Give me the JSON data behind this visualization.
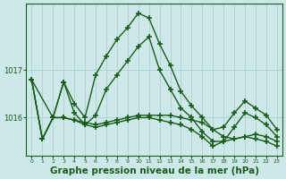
{
  "background_color": "#cce8e8",
  "plot_bg_color": "#cce8e8",
  "line_color": "#1a5c1a",
  "marker_style": "+",
  "marker_size": 5,
  "marker_lw": 1.2,
  "line_width": 1.0,
  "xlabel": "Graphe pression niveau de la mer (hPa)",
  "xlabel_fontsize": 7.5,
  "xlabel_color": "#1a5c1a",
  "tick_color": "#1a5c1a",
  "grid_color": "#a8cccc",
  "ylim": [
    1015.2,
    1018.4
  ],
  "xlim": [
    -0.5,
    23.5
  ],
  "yticks": [
    1016,
    1017
  ],
  "xticks": [
    0,
    1,
    2,
    3,
    4,
    5,
    6,
    7,
    8,
    9,
    10,
    11,
    12,
    13,
    14,
    15,
    16,
    17,
    18,
    19,
    20,
    21,
    22,
    23
  ],
  "series": [
    {
      "x": [
        0,
        1,
        2,
        3,
        4,
        5,
        6,
        7,
        8,
        9,
        10,
        11,
        12,
        13,
        14,
        15,
        16,
        17,
        18,
        19,
        20,
        21,
        22,
        23
      ],
      "y": [
        1016.8,
        1015.55,
        1016.0,
        1016.75,
        1016.3,
        1016.0,
        1016.9,
        1017.3,
        1017.65,
        1017.9,
        1018.2,
        1018.1,
        1017.55,
        1017.1,
        1016.55,
        1016.25,
        1016.0,
        1015.75,
        1015.8,
        1016.1,
        1016.35,
        1016.2,
        1016.05,
        1015.75
      ]
    },
    {
      "x": [
        0,
        1,
        2,
        3,
        4,
        5,
        6,
        7,
        8,
        9,
        10,
        11,
        12,
        13,
        14,
        15,
        16,
        17,
        18,
        19,
        20,
        21,
        22,
        23
      ],
      "y": [
        1016.8,
        1015.55,
        1016.0,
        1016.75,
        1016.1,
        1015.85,
        1016.05,
        1016.6,
        1016.9,
        1017.2,
        1017.5,
        1017.7,
        1017.0,
        1016.6,
        1016.2,
        1016.0,
        1015.7,
        1015.5,
        1015.5,
        1015.8,
        1016.1,
        1016.0,
        1015.85,
        1015.6
      ]
    },
    {
      "x": [
        0,
        2,
        3,
        4,
        5,
        6,
        7,
        8,
        9,
        10,
        11,
        12,
        13,
        14,
        15,
        16,
        17,
        18,
        19,
        20,
        21,
        22,
        23
      ],
      "y": [
        1016.8,
        1016.0,
        1016.0,
        1015.95,
        1015.9,
        1015.85,
        1015.9,
        1015.95,
        1016.0,
        1016.05,
        1016.05,
        1016.05,
        1016.05,
        1016.0,
        1015.95,
        1015.9,
        1015.75,
        1015.6,
        1015.55,
        1015.6,
        1015.65,
        1015.6,
        1015.5
      ]
    },
    {
      "x": [
        0,
        1,
        2,
        3,
        4,
        5,
        6,
        7,
        8,
        9,
        10,
        11,
        12,
        13,
        14,
        15,
        16,
        17,
        18,
        19,
        20,
        21,
        22,
        23
      ],
      "y": [
        1016.8,
        1015.55,
        1016.0,
        1016.0,
        1015.95,
        1015.85,
        1015.8,
        1015.85,
        1015.9,
        1015.95,
        1016.0,
        1016.0,
        1015.95,
        1015.9,
        1015.85,
        1015.75,
        1015.6,
        1015.4,
        1015.5,
        1015.55,
        1015.6,
        1015.55,
        1015.5,
        1015.4
      ]
    }
  ]
}
